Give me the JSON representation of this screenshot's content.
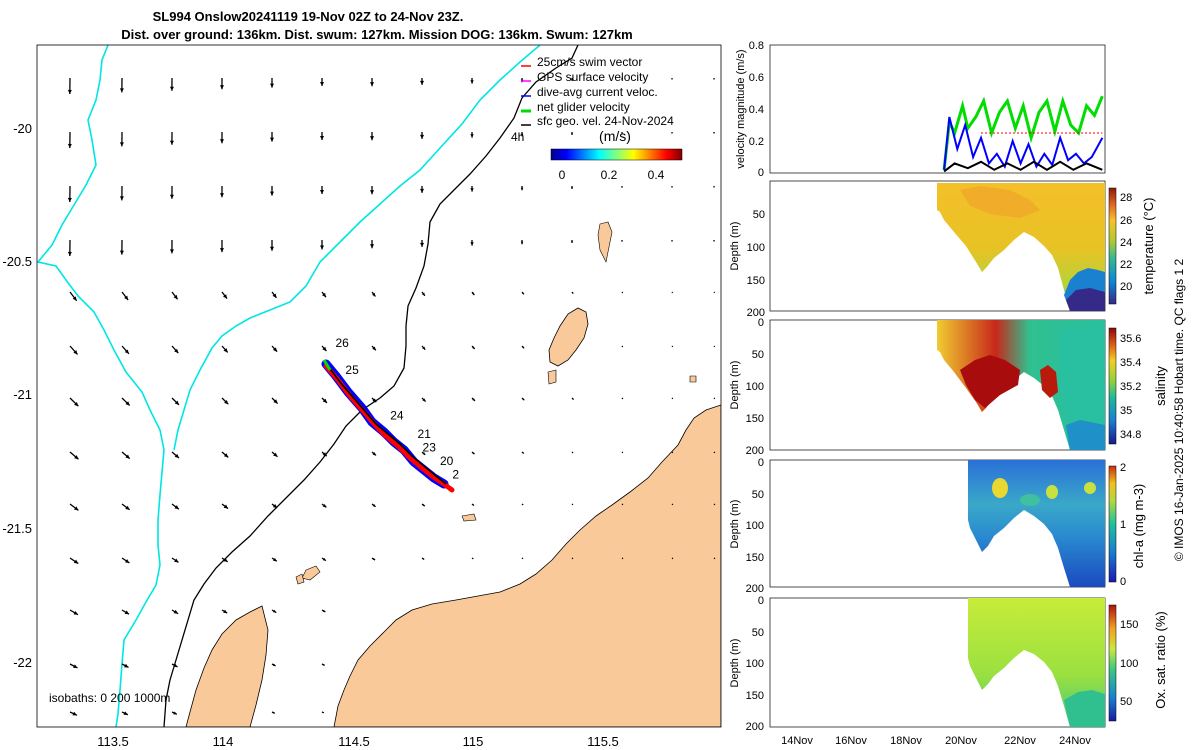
{
  "title": {
    "line1": "SL994 Onslow20241119 19-Nov 02Z to 24-Nov 23Z.",
    "line2": "Dist. over ground: 136km. Dist. swum: 127km. Mission DOG: 136km. Swum: 127km"
  },
  "legend": {
    "items": [
      {
        "label": "25cm/s swim vector",
        "color": "#ff0000"
      },
      {
        "label": "GPS surface velocity",
        "color": "#ff00ff"
      },
      {
        "label": "dive-avg current veloc.",
        "color": "#0000ff"
      },
      {
        "label": "net glider velocity",
        "color": "#00dd00"
      },
      {
        "label": "sfc geo. vel. 24-Nov-2024",
        "color": "#000000"
      }
    ],
    "time_marker": "4h",
    "colorbar_title": "(m/s)",
    "colorbar_ticks": [
      "0",
      "0.2",
      "0.4"
    ]
  },
  "isobaths_label": "isobaths: 0   200  1000m",
  "footer": "© IMOS 16-Jan-2025 10:40:58 Hobart time. QC flags 1  2",
  "colors": {
    "land": "#f9c99a",
    "isobath_cyan": "#00e5e5",
    "track_red": "#ff0000",
    "track_blue": "#0000ff",
    "track_green": "#00dd00"
  },
  "chart_data": [
    {
      "type": "map",
      "xlabel": "Longitude",
      "ylabel": "Latitude",
      "xlim": [
        113.25,
        116.0
      ],
      "ylim": [
        -22.25,
        -19.7
      ],
      "xticks": [
        "113.5",
        "114",
        "114.5",
        "115",
        "115.5"
      ],
      "yticks": [
        "-20",
        "-20.5",
        "-21",
        "-21.5",
        "-22"
      ],
      "day_labels": [
        {
          "label": "26",
          "lon": 114.45,
          "lat": -20.83
        },
        {
          "label": "25",
          "lon": 114.49,
          "lat": -20.93
        },
        {
          "label": "24",
          "lon": 114.67,
          "lat": -21.1
        },
        {
          "label": "21",
          "lon": 114.78,
          "lat": -21.17
        },
        {
          "label": "23",
          "lon": 114.8,
          "lat": -21.22
        },
        {
          "label": "20",
          "lon": 114.87,
          "lat": -21.27
        },
        {
          "label": "2",
          "lon": 114.92,
          "lat": -21.32
        }
      ],
      "track": [
        {
          "lon": 114.43,
          "lat": -20.87
        },
        {
          "lon": 114.5,
          "lat": -20.95
        },
        {
          "lon": 114.6,
          "lat": -21.05
        },
        {
          "lon": 114.68,
          "lat": -21.13
        },
        {
          "lon": 114.76,
          "lat": -21.19
        },
        {
          "lon": 114.84,
          "lat": -21.27
        },
        {
          "lon": 114.9,
          "lat": -21.33
        }
      ]
    },
    {
      "type": "line",
      "ylabel": "velocity magnitude (m/s)",
      "ylim": [
        0,
        0.8
      ],
      "yticks": [
        "0",
        "0.2",
        "0.4",
        "0.6",
        "0.8"
      ],
      "xlim": [
        12.5,
        25.2
      ],
      "series": [
        {
          "name": "net glider velocity",
          "color": "#00dd00",
          "x": [
            19.1,
            19.3,
            19.5,
            19.8,
            20.0,
            20.3,
            20.6,
            20.9,
            21.2,
            21.5,
            21.8,
            22.1,
            22.4,
            22.7,
            23.0,
            23.3,
            23.6,
            23.9,
            24.2,
            24.5,
            24.8,
            25.1
          ],
          "y": [
            0.02,
            0.32,
            0.25,
            0.42,
            0.28,
            0.35,
            0.45,
            0.25,
            0.38,
            0.45,
            0.28,
            0.42,
            0.22,
            0.38,
            0.45,
            0.26,
            0.45,
            0.3,
            0.25,
            0.42,
            0.36,
            0.48
          ]
        },
        {
          "name": "dive-avg current veloc.",
          "color": "#0000ff",
          "x": [
            19.1,
            19.3,
            19.6,
            19.9,
            20.2,
            20.5,
            20.8,
            21.1,
            21.4,
            21.7,
            22.0,
            22.3,
            22.6,
            22.9,
            23.2,
            23.5,
            23.8,
            24.1,
            24.4,
            24.7,
            25.1
          ],
          "y": [
            0.02,
            0.35,
            0.15,
            0.3,
            0.1,
            0.22,
            0.06,
            0.12,
            0.04,
            0.2,
            0.06,
            0.18,
            0.04,
            0.12,
            0.05,
            0.22,
            0.08,
            0.12,
            0.06,
            0.1,
            0.22
          ]
        },
        {
          "name": "sfc geo. vel.",
          "color": "#000000",
          "x": [
            19.1,
            19.5,
            20.0,
            20.5,
            21.0,
            21.5,
            22.0,
            22.5,
            23.0,
            23.5,
            24.0,
            24.5,
            25.1
          ],
          "y": [
            0.01,
            0.06,
            0.03,
            0.07,
            0.02,
            0.06,
            0.02,
            0.07,
            0.02,
            0.07,
            0.02,
            0.06,
            0.02
          ]
        },
        {
          "name": "25cm/s swim vector",
          "color": "#ff0000",
          "x": [
            20.5,
            25.1
          ],
          "y": [
            0.25,
            0.25
          ]
        }
      ]
    },
    {
      "type": "heatmap",
      "ylabel": "Depth (m)",
      "colorbar_label": "temperature (°C)",
      "yticks": [
        "50",
        "100",
        "150",
        "200"
      ],
      "cticks": [
        "20",
        "22",
        "24",
        "26",
        "28"
      ],
      "clim": [
        18,
        29
      ],
      "profile_start": "19-Nov",
      "profile_end": "24-Nov"
    },
    {
      "type": "heatmap",
      "ylabel": "Depth (m)",
      "colorbar_label": "salinity",
      "yticks": [
        "0",
        "50",
        "100",
        "150",
        "200"
      ],
      "cticks": [
        "34.8",
        "35",
        "35.2",
        "35.4",
        "35.6"
      ],
      "clim": [
        34.7,
        35.7
      ]
    },
    {
      "type": "heatmap",
      "ylabel": "Depth (m)",
      "colorbar_label": "chl-a (mg m-3)",
      "yticks": [
        "0",
        "50",
        "100",
        "150",
        "200"
      ],
      "cticks": [
        "0",
        "1",
        "2"
      ],
      "clim": [
        0,
        2
      ]
    },
    {
      "type": "heatmap",
      "ylabel": "Depth (m)",
      "colorbar_label": "Ox. sat. ratio (%)",
      "yticks": [
        "0",
        "50",
        "100",
        "150",
        "200"
      ],
      "cticks": [
        "50",
        "100",
        "150"
      ],
      "clim": [
        20,
        175
      ],
      "xticks": [
        "14Nov",
        "16Nov",
        "18Nov",
        "20Nov",
        "22Nov",
        "24Nov"
      ]
    }
  ]
}
